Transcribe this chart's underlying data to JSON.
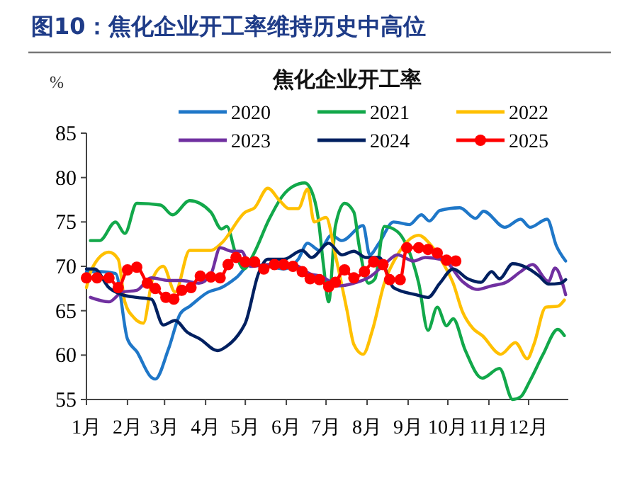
{
  "chart_data": {
    "type": "line",
    "title": "图10：焦化企业开工率维持历史中高位",
    "subtitle": "焦化企业开工率",
    "ylabel": "%",
    "xlim": [
      "--01-01",
      "--12-31"
    ],
    "ylim": [
      55,
      85
    ],
    "yticks": [
      55,
      60,
      65,
      70,
      75,
      80,
      85
    ],
    "xticks": [
      {
        "value": "--01-01",
        "label": "1月"
      },
      {
        "value": "--02-01",
        "label": "2月"
      },
      {
        "value": "--03-01",
        "label": "3月"
      },
      {
        "value": "--04-01",
        "label": "4月"
      },
      {
        "value": "--05-01",
        "label": "5月"
      },
      {
        "value": "--06-01",
        "label": "6月"
      },
      {
        "value": "--07-01",
        "label": "7月"
      },
      {
        "value": "--08-01",
        "label": "8月"
      },
      {
        "value": "--09-01",
        "label": "9月"
      },
      {
        "value": "--10-01",
        "label": "10月"
      },
      {
        "value": "--11-01",
        "label": "11月"
      },
      {
        "value": "--12-01",
        "label": "12月"
      }
    ],
    "grid": false,
    "legend": "top",
    "line_style": "solid",
    "series": [
      {
        "name": "2020",
        "color": "#1f77c8",
        "marker": "none",
        "x": [
          "--01-01",
          "--01-12",
          "--01-23",
          "--02-01",
          "--02-08",
          "--02-19",
          "--02-22",
          "--03-04",
          "--03-13",
          "--03-20",
          "--04-03",
          "--04-13",
          "--04-24",
          "--05-05",
          "--05-19",
          "--05-30",
          "--06-10",
          "--06-17",
          "--06-26",
          "--07-05",
          "--07-13",
          "--07-29",
          "--08-03",
          "--08-10",
          "--08-21",
          "--09-02",
          "--09-11",
          "--09-17",
          "--09-25",
          "--10-10",
          "--10-22",
          "--10-28",
          "--11-13",
          "--11-25",
          "--12-02",
          "--12-15",
          "--12-22",
          "--12-29"
        ],
        "values": [
          69.4,
          69.4,
          69.2,
          61.8,
          60.4,
          57.5,
          57.3,
          60.7,
          64.7,
          65.5,
          67.1,
          67.6,
          68.7,
          70.2,
          70,
          69.7,
          70.8,
          72.6,
          71.8,
          73.5,
          72.9,
          74.6,
          71.3,
          72.6,
          75,
          74.7,
          75.8,
          75.1,
          76.3,
          76.6,
          75.4,
          76.2,
          74.4,
          75.3,
          74.4,
          75.3,
          72.3,
          70.6
        ]
      },
      {
        "name": "2021",
        "color": "#12a84a",
        "marker": "none",
        "x": [
          "--01-04",
          "--01-11",
          "--01-23",
          "--01-30",
          "--02-08",
          "--02-26",
          "--03-07",
          "--03-20",
          "--04-05",
          "--04-13",
          "--04-17",
          "--04-24",
          "--04-30",
          "--05-07",
          "--05-19",
          "--05-29",
          "--06-06",
          "--06-15",
          "--06-20",
          "--06-25",
          "--06-29",
          "--07-03",
          "--07-08",
          "--07-15",
          "--07-22",
          "--07-26",
          "--08-02",
          "--08-07",
          "--08-14",
          "--08-24",
          "--08-31",
          "--09-09",
          "--09-16",
          "--09-23",
          "--09-30",
          "--10-05",
          "--10-14",
          "--10-27",
          "--11-09",
          "--11-19",
          "--11-25",
          "--12-02",
          "--12-12",
          "--12-23",
          "--12-28"
        ],
        "values": [
          72.9,
          72.9,
          75,
          73.7,
          77.1,
          76.9,
          75.8,
          77.4,
          76.1,
          74.2,
          74.5,
          71.3,
          69.7,
          71.3,
          75.3,
          77.9,
          79,
          79.4,
          78.5,
          75.5,
          70.2,
          66,
          74.5,
          77.1,
          76.1,
          72.3,
          68.1,
          68.6,
          74.5,
          73.9,
          72.3,
          68.1,
          62.8,
          65.4,
          63.3,
          64.1,
          60.6,
          57.4,
          58.5,
          55,
          55.3,
          57.1,
          60.1,
          62.9,
          62.2
        ]
      },
      {
        "name": "2022",
        "color": "#ffc000",
        "marker": "none",
        "x": [
          "--01-01",
          "--01-05",
          "--01-18",
          "--01-25",
          "--01-30",
          "--02-06",
          "--02-13",
          "--02-20",
          "--02-28",
          "--03-09",
          "--03-20",
          "--04-05",
          "--04-13",
          "--05-01",
          "--05-08",
          "--05-18",
          "--05-27",
          "--06-03",
          "--06-10",
          "--06-17",
          "--06-22",
          "--07-01",
          "--07-08",
          "--07-17",
          "--07-22",
          "--07-29",
          "--08-05",
          "--08-14",
          "--08-24",
          "--09-09",
          "--09-17",
          "--09-28",
          "--10-05",
          "--10-12",
          "--10-20",
          "--10-27",
          "--11-10",
          "--11-21",
          "--11-30",
          "--12-05",
          "--12-14",
          "--12-23",
          "--12-28"
        ],
        "values": [
          67.6,
          69.7,
          71.6,
          70.8,
          66,
          64.2,
          63.6,
          68.6,
          70,
          67.1,
          71.8,
          71.8,
          72.6,
          76.1,
          76.6,
          78.8,
          77.4,
          76.5,
          76.5,
          78.7,
          75,
          75.5,
          71.3,
          64.9,
          61.2,
          60.1,
          62.8,
          68.1,
          71.3,
          73.5,
          72.6,
          70.2,
          68.1,
          64.9,
          63,
          62.2,
          60.1,
          61.4,
          59.6,
          61.2,
          65.4,
          65.5,
          66.2
        ]
      },
      {
        "name": "2023",
        "color": "#7030a0",
        "marker": "none",
        "x": [
          "--01-04",
          "--01-18",
          "--01-28",
          "--02-08",
          "--02-19",
          "--03-04",
          "--03-14",
          "--03-27",
          "--04-05",
          "--04-12",
          "--04-21",
          "--04-28",
          "--05-05",
          "--05-19",
          "--06-06",
          "--06-20",
          "--06-27",
          "--07-05",
          "--07-10",
          "--07-22",
          "--08-04",
          "--08-14",
          "--08-24",
          "--09-05",
          "--09-14",
          "--09-28",
          "--10-12",
          "--10-23",
          "--11-03",
          "--11-14",
          "--11-25",
          "--12-04",
          "--12-16",
          "--12-21",
          "--12-29"
        ],
        "values": [
          66.5,
          66,
          67.1,
          67.3,
          68.7,
          68.4,
          68.4,
          68.1,
          69.1,
          72.1,
          71.7,
          71.7,
          70,
          70.2,
          70.2,
          69.1,
          68.9,
          68.2,
          67.8,
          68.1,
          68.9,
          70.2,
          71.3,
          70.6,
          71,
          70.7,
          68.3,
          67.4,
          67.8,
          68.2,
          69.4,
          70.2,
          68.3,
          69.8,
          66.8
        ]
      },
      {
        "name": "2024",
        "color": "#002060",
        "marker": "none",
        "x": [
          "--01-01",
          "--01-07",
          "--01-18",
          "--01-28",
          "--02-08",
          "--02-19",
          "--02-28",
          "--03-09",
          "--03-18",
          "--03-28",
          "--04-10",
          "--04-17",
          "--04-28",
          "--05-01",
          "--05-11",
          "--05-18",
          "--05-30",
          "--06-13",
          "--06-20",
          "--07-03",
          "--07-13",
          "--07-22",
          "--07-31",
          "--08-10",
          "--08-21",
          "--09-07",
          "--09-16",
          "--09-25",
          "--10-05",
          "--10-16",
          "--10-26",
          "--11-03",
          "--11-09",
          "--11-19",
          "--11-29",
          "--12-09",
          "--12-16",
          "--12-25",
          "--12-29"
        ],
        "values": [
          69.7,
          69.7,
          67.6,
          66.8,
          66.5,
          66.3,
          63.4,
          63.9,
          62.6,
          61.8,
          60.5,
          61,
          62.8,
          63.6,
          69.2,
          70.8,
          70.8,
          71.8,
          71,
          72.6,
          71.3,
          71.7,
          71,
          71,
          67.6,
          66.8,
          66.5,
          68.1,
          69.7,
          68.6,
          68.2,
          69.4,
          68.6,
          70.3,
          69.9,
          68.9,
          68,
          68.1,
          68.5
        ]
      },
      {
        "name": "2025",
        "color": "#ff0000",
        "marker": "circle",
        "x": [
          "--01-01",
          "--01-09",
          "--01-18",
          "--01-25",
          "--02-01",
          "--02-08",
          "--02-16",
          "--02-22",
          "--03-02",
          "--03-08",
          "--03-14",
          "--03-21",
          "--03-28",
          "--04-05",
          "--04-12",
          "--04-18",
          "--04-24",
          "--05-01",
          "--05-08",
          "--05-15",
          "--05-23",
          "--05-30",
          "--06-06",
          "--06-13",
          "--06-19",
          "--06-26",
          "--07-03",
          "--07-08",
          "--07-15",
          "--07-22",
          "--07-30",
          "--08-06",
          "--08-13",
          "--08-18",
          "--08-26",
          "--08-31",
          "--09-09",
          "--09-16",
          "--09-23",
          "--09-30",
          "--10-07"
        ],
        "values": [
          68.7,
          68.7,
          68.7,
          67.6,
          69.6,
          69.9,
          68.1,
          67.5,
          66.5,
          66.3,
          67.3,
          67.6,
          68.9,
          68.8,
          68.7,
          70.2,
          71,
          70.5,
          70.5,
          69.7,
          70.2,
          70.2,
          70,
          69.4,
          68.6,
          68.5,
          67.7,
          68.2,
          69.6,
          68.7,
          69.4,
          70.5,
          70.2,
          68.5,
          68.5,
          72.1,
          72.1,
          71.9,
          71.5,
          70.7,
          70.6
        ]
      }
    ]
  }
}
